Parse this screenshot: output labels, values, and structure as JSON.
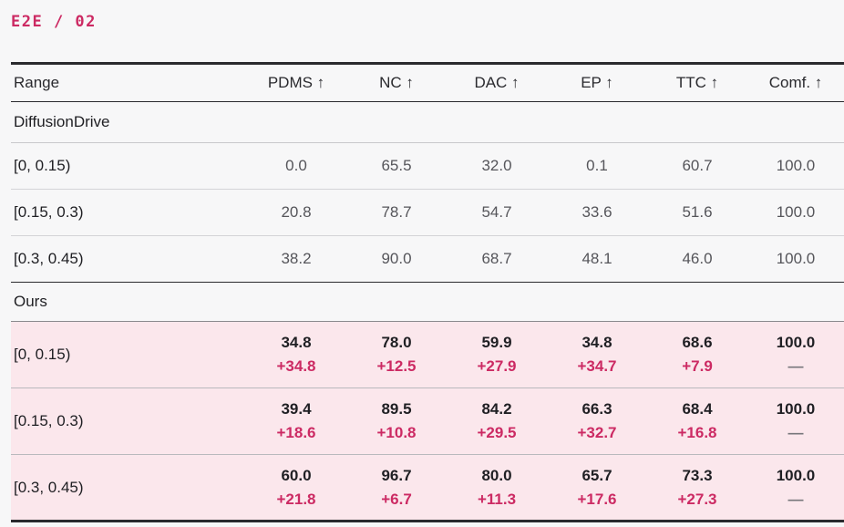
{
  "tag": "E2E / 02",
  "headers": [
    "Range",
    "PDMS ↑",
    "NC ↑",
    "DAC ↑",
    "EP ↑",
    "TTC ↑",
    "Comf. ↑"
  ],
  "sections": {
    "baseline": {
      "name": "DiffusionDrive",
      "rows": [
        {
          "range": "[0, 0.15)",
          "values": [
            "0.0",
            "65.5",
            "32.0",
            "0.1",
            "60.7",
            "100.0"
          ]
        },
        {
          "range": "[0.15, 0.3)",
          "values": [
            "20.8",
            "78.7",
            "54.7",
            "33.6",
            "51.6",
            "100.0"
          ]
        },
        {
          "range": "[0.3, 0.45)",
          "values": [
            "38.2",
            "90.0",
            "68.7",
            "48.1",
            "46.0",
            "100.0"
          ]
        }
      ]
    },
    "ours": {
      "name": "Ours",
      "rows": [
        {
          "range": "[0, 0.15)",
          "values": [
            "34.8",
            "78.0",
            "59.9",
            "34.8",
            "68.6",
            "100.0"
          ],
          "deltas": [
            "+34.8",
            "+12.5",
            "+27.9",
            "+34.7",
            "+7.9",
            "—"
          ]
        },
        {
          "range": "[0.15, 0.3)",
          "values": [
            "39.4",
            "89.5",
            "84.2",
            "66.3",
            "68.4",
            "100.0"
          ],
          "deltas": [
            "+18.6",
            "+10.8",
            "+29.5",
            "+32.7",
            "+16.8",
            "—"
          ]
        },
        {
          "range": "[0.3, 0.45)",
          "values": [
            "60.0",
            "96.7",
            "80.0",
            "65.7",
            "73.3",
            "100.0"
          ],
          "deltas": [
            "+21.8",
            "+6.7",
            "+11.3",
            "+17.6",
            "+27.3",
            "—"
          ]
        }
      ]
    }
  },
  "colors": {
    "accent": "#cc2a63",
    "highlight_bg": "#fbe7ec",
    "rule": "#2a2a2e"
  }
}
